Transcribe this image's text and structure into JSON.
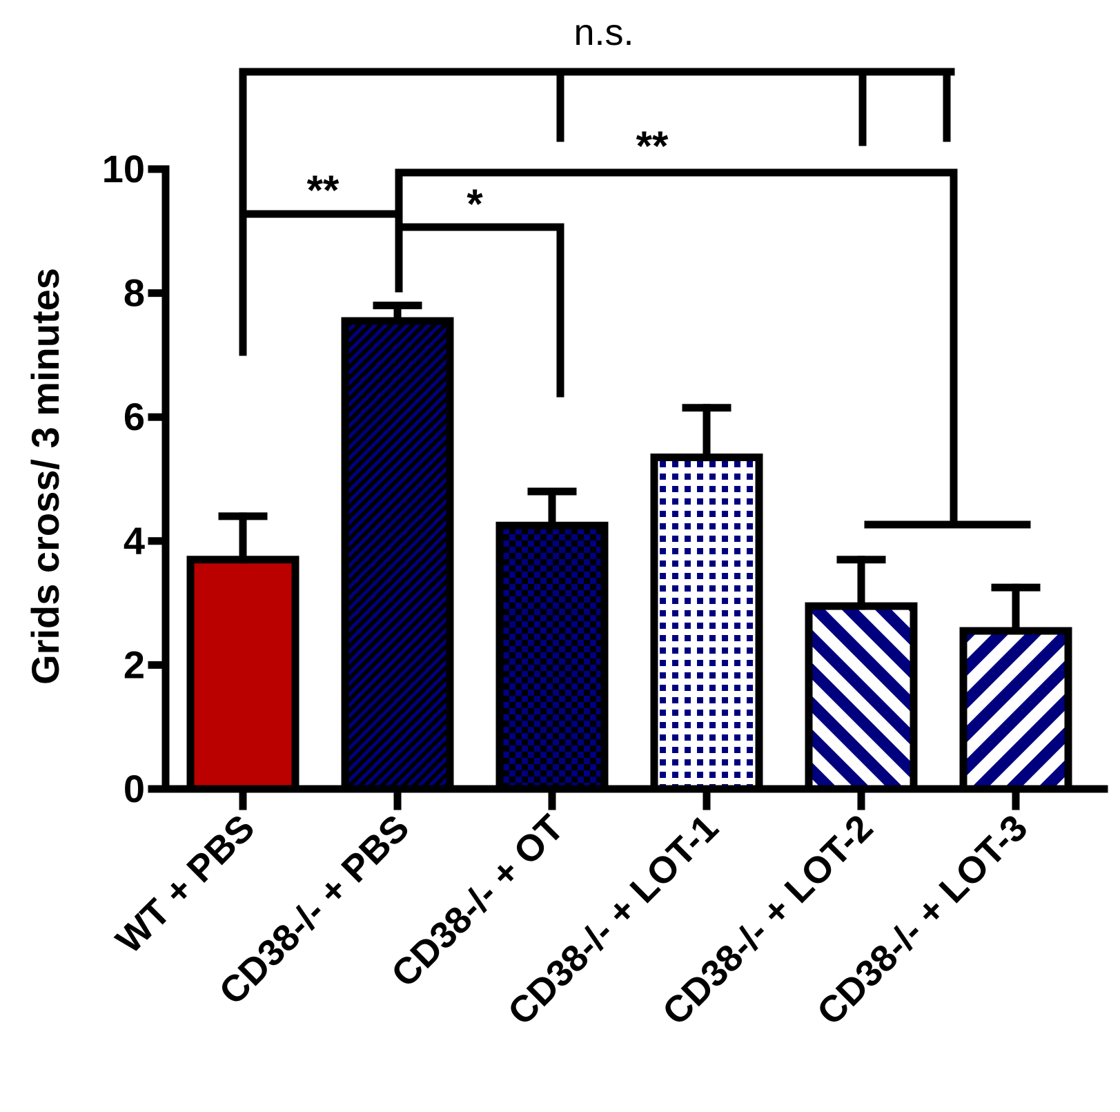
{
  "chart_data": {
    "type": "bar",
    "title": "",
    "xlabel": "",
    "ylabel": "Grids cross/ 3 minutes",
    "ylim": [
      0,
      10
    ],
    "yticks": [
      0,
      2,
      4,
      6,
      8,
      10
    ],
    "yticklabels": [
      "0",
      "2",
      "4",
      "6",
      "8",
      "10"
    ],
    "categories": [
      "WT + PBS",
      "CD38-/- + PBS",
      "CD38-/- + OT",
      "CD38-/- + LOT-1",
      "CD38-/- + LOT-2",
      "CD38-/- + LOT-3"
    ],
    "values": [
      3.7,
      7.55,
      4.25,
      5.35,
      2.95,
      2.55
    ],
    "errors": [
      0.7,
      0.25,
      0.55,
      0.8,
      0.75,
      0.7
    ],
    "bar_styles": [
      {
        "pattern": "solid",
        "color": "#bb0000"
      },
      {
        "pattern": "fine-diagonal",
        "color": "#00007f"
      },
      {
        "pattern": "checker-dense",
        "color": "#00007f"
      },
      {
        "pattern": "checker-sparse",
        "color": "#00007f"
      },
      {
        "pattern": "wide-diagonal-up",
        "color": "#00007f"
      },
      {
        "pattern": "wide-diagonal-down",
        "color": "#00007f"
      }
    ],
    "annotations": [
      {
        "label": "n.s.",
        "groups": [
          0,
          2,
          4,
          5
        ]
      },
      {
        "label": "**",
        "groups": [
          0,
          1
        ]
      },
      {
        "label": "*",
        "groups": [
          1,
          2
        ]
      },
      {
        "label": "**",
        "groups": [
          1,
          4,
          5
        ]
      }
    ]
  }
}
